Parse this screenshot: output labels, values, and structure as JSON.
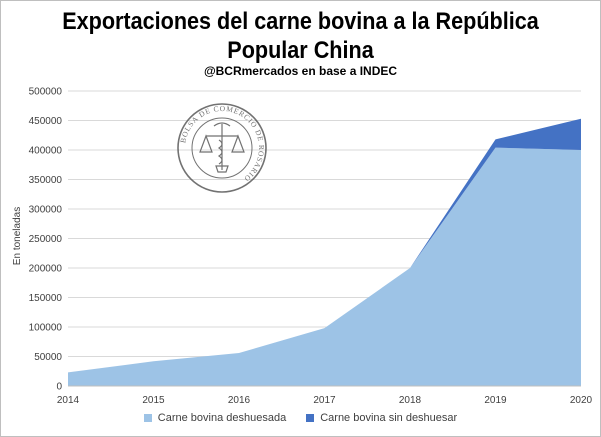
{
  "chart_data": {
    "type": "area",
    "title_line1": "Exportaciones del carne bovina a la República",
    "title_line2": "Popular China",
    "subtitle": "@BCRmercados  en base a INDEC",
    "ylabel": "En toneladas",
    "xlabel": "",
    "categories": [
      "2014",
      "2015",
      "2016",
      "2017",
      "2018",
      "2019",
      "2020"
    ],
    "ylim": [
      0,
      500000
    ],
    "yticks": [
      "0",
      "50000",
      "100000",
      "150000",
      "200000",
      "250000",
      "300000",
      "350000",
      "400000",
      "450000",
      "500000"
    ],
    "stacked": true,
    "series": [
      {
        "name": "Carne bovina deshuesada",
        "color": "#9dc3e6",
        "values": [
          23000,
          42000,
          56000,
          98000,
          200000,
          404000,
          400000
        ]
      },
      {
        "name": "Carne bovina sin deshuesar",
        "color": "#4472c4",
        "values": [
          0,
          0,
          0,
          0,
          0,
          14000,
          53000
        ]
      }
    ],
    "legend_position": "bottom",
    "watermark": {
      "text": "BOLSA DE COMERCIO DE ROSARIO",
      "icon": "scales-of-justice-icon"
    }
  }
}
